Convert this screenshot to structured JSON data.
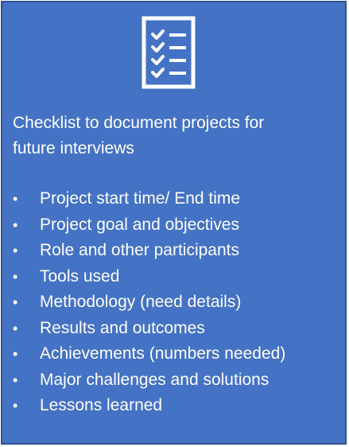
{
  "card": {
    "background": "#4472c4",
    "border_color": "#2f528f",
    "icon": "checklist-icon",
    "heading_line1": "Checklist to document projects for",
    "heading_line2": "future interviews",
    "bullet_symbol": "•",
    "items": [
      "Project start time/ End time",
      "Project goal and objectives",
      "Role and other participants",
      "Tools used",
      "Methodology (need details)",
      "Results and outcomes",
      "Achievements (numbers needed)",
      "Major challenges and solutions",
      "Lessons learned"
    ]
  }
}
